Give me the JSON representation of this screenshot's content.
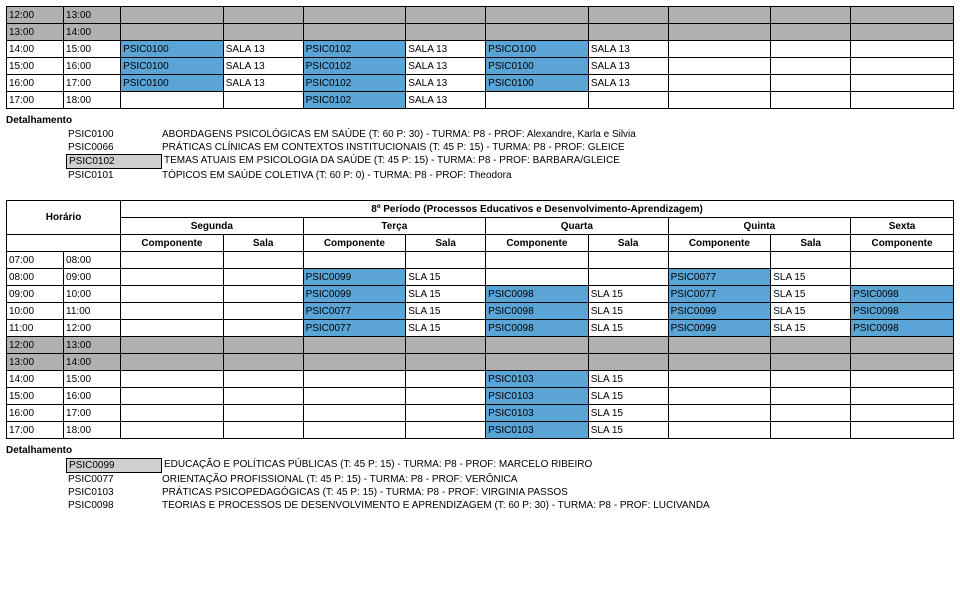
{
  "colors": {
    "blue": "#5aa4d6",
    "gray": "#b0b0b0",
    "shade": "#d0d0d0",
    "white": "#ffffff",
    "border": "#000000"
  },
  "table1": {
    "time_col": [
      [
        "12:00",
        "13:00"
      ],
      [
        "13:00",
        "14:00"
      ],
      [
        "14:00",
        "15:00"
      ],
      [
        "15:00",
        "16:00"
      ],
      [
        "16:00",
        "17:00"
      ],
      [
        "17:00",
        "18:00"
      ]
    ],
    "rows": [
      {
        "bg": "gray",
        "cells": [
          [
            "",
            ""
          ],
          [
            "",
            ""
          ],
          [
            "",
            ""
          ],
          [
            "",
            ""
          ],
          [
            "",
            ""
          ],
          [
            "",
            ""
          ],
          [
            "",
            ""
          ],
          [
            "",
            ""
          ],
          [
            "",
            ""
          ]
        ]
      },
      {
        "bg": "gray",
        "cells": [
          [
            "",
            ""
          ],
          [
            "",
            ""
          ],
          [
            "",
            ""
          ],
          [
            "",
            ""
          ],
          [
            "",
            ""
          ],
          [
            "",
            ""
          ],
          [
            "",
            ""
          ],
          [
            "",
            ""
          ],
          [
            "",
            ""
          ]
        ]
      },
      {
        "bg": "",
        "cells": [
          [
            "PSIC0100",
            "blue"
          ],
          [
            "SALA 13",
            ""
          ],
          [
            "PSIC0102",
            "blue"
          ],
          [
            "SALA 13",
            ""
          ],
          [
            "PSICO100",
            "blue"
          ],
          [
            "SALA 13",
            ""
          ],
          [
            "",
            ""
          ],
          [
            "",
            ""
          ],
          [
            "",
            ""
          ]
        ]
      },
      {
        "bg": "",
        "cells": [
          [
            "PSIC0100",
            "blue"
          ],
          [
            "SALA 13",
            ""
          ],
          [
            "PSIC0102",
            "blue"
          ],
          [
            "SALA 13",
            ""
          ],
          [
            "PSIC0100",
            "blue"
          ],
          [
            "SALA 13",
            ""
          ],
          [
            "",
            ""
          ],
          [
            "",
            ""
          ],
          [
            "",
            ""
          ]
        ]
      },
      {
        "bg": "",
        "cells": [
          [
            "PSIC0100",
            "blue"
          ],
          [
            "SALA 13",
            ""
          ],
          [
            "PSIC0102",
            "blue"
          ],
          [
            "SALA 13",
            ""
          ],
          [
            "PSIC0100",
            "blue"
          ],
          [
            "SALA 13",
            ""
          ],
          [
            "",
            ""
          ],
          [
            "",
            ""
          ],
          [
            "",
            ""
          ]
        ]
      },
      {
        "bg": "",
        "cells": [
          [
            "",
            ""
          ],
          [
            "",
            ""
          ],
          [
            "PSIC0102",
            "blue"
          ],
          [
            "SALA 13",
            ""
          ],
          [
            "",
            ""
          ],
          [
            "",
            ""
          ],
          [
            "",
            ""
          ],
          [
            "",
            ""
          ],
          [
            "",
            ""
          ]
        ]
      }
    ]
  },
  "detail1": {
    "title": "Detalhamento",
    "rows": [
      {
        "code": "PSIC0100",
        "txt": "ABORDAGENS PSICOLÓGICAS EM SAÚDE (T: 60 P: 30) - TURMA: P8 - PROF:  Alexandre, Karla e Silvia",
        "shade": false
      },
      {
        "code": "PSIC0066",
        "txt": "PRÁTICAS CLÍNICAS EM CONTEXTOS INSTITUCIONAIS (T: 45 P: 15) - TURMA: P8 - PROF: GLEICE",
        "shade": false
      },
      {
        "code": "PSIC0102",
        "txt": "TEMAS ATUAIS EM PSICOLOGIA DA SAÚDE (T: 45 P: 15) - TURMA: P8 - PROF: BARBARA/GLEICE",
        "shade": true
      },
      {
        "code": "PSIC0101",
        "txt": "TÓPICOS EM SAÚDE COLETIVA (T: 60 P: 0) - TURMA: P8 - PROF:  Theodora",
        "shade": false
      }
    ]
  },
  "table2": {
    "super_title": "8º Período (Processos Educativos e Desenvolvimento-Aprendizagem)",
    "horario": "Horário",
    "days": [
      "Segunda",
      "Terça",
      "Quarta",
      "Quinta",
      "Sexta"
    ],
    "subhead": [
      "Componente",
      "Sala",
      "Componente",
      "Sala",
      "Componente",
      "Sala",
      "Componente",
      "Sala",
      "Componente"
    ],
    "time_col": [
      [
        "07:00",
        "08:00"
      ],
      [
        "08:00",
        "09:00"
      ],
      [
        "09:00",
        "10:00"
      ],
      [
        "10:00",
        "11:00"
      ],
      [
        "11:00",
        "12:00"
      ],
      [
        "12:00",
        "13:00"
      ],
      [
        "13:00",
        "14:00"
      ],
      [
        "14:00",
        "15:00"
      ],
      [
        "15:00",
        "16:00"
      ],
      [
        "16:00",
        "17:00"
      ],
      [
        "17:00",
        "18:00"
      ]
    ],
    "rows": [
      {
        "bg": "",
        "cells": [
          [
            "",
            ""
          ],
          [
            "",
            ""
          ],
          [
            "",
            ""
          ],
          [
            "",
            ""
          ],
          [
            "",
            ""
          ],
          [
            "",
            ""
          ],
          [
            "",
            ""
          ],
          [
            "",
            ""
          ],
          [
            "",
            ""
          ]
        ]
      },
      {
        "bg": "",
        "cells": [
          [
            "",
            ""
          ],
          [
            "",
            ""
          ],
          [
            "PSIC0099",
            "blue"
          ],
          [
            "SLA 15",
            ""
          ],
          [
            "",
            ""
          ],
          [
            "",
            ""
          ],
          [
            "PSIC0077",
            "blue"
          ],
          [
            "SLA 15",
            ""
          ],
          [
            "",
            ""
          ]
        ]
      },
      {
        "bg": "",
        "cells": [
          [
            "",
            ""
          ],
          [
            "",
            ""
          ],
          [
            "PSIC0099",
            "blue"
          ],
          [
            "SLA 15",
            ""
          ],
          [
            "PSIC0098",
            "blue"
          ],
          [
            "SLA 15",
            ""
          ],
          [
            "PSIC0077",
            "blue"
          ],
          [
            "SLA 15",
            ""
          ],
          [
            "PSIC0098",
            "blue"
          ]
        ]
      },
      {
        "bg": "",
        "cells": [
          [
            "",
            ""
          ],
          [
            "",
            ""
          ],
          [
            "PSIC0077",
            "blue"
          ],
          [
            "SLA 15",
            ""
          ],
          [
            "PSIC0098",
            "blue"
          ],
          [
            "SLA 15",
            ""
          ],
          [
            "PSIC0099",
            "blue"
          ],
          [
            "SLA 15",
            ""
          ],
          [
            "PSIC0098",
            "blue"
          ]
        ]
      },
      {
        "bg": "",
        "cells": [
          [
            "",
            ""
          ],
          [
            "",
            ""
          ],
          [
            "PSIC0077",
            "blue"
          ],
          [
            "SLA 15",
            ""
          ],
          [
            "PSIC0098",
            "blue"
          ],
          [
            "SLA 15",
            ""
          ],
          [
            "PSIC0099",
            "blue"
          ],
          [
            "SLA 15",
            ""
          ],
          [
            "PSIC0098",
            "blue"
          ]
        ]
      },
      {
        "bg": "gray",
        "cells": [
          [
            "",
            ""
          ],
          [
            "",
            ""
          ],
          [
            "",
            ""
          ],
          [
            "",
            ""
          ],
          [
            "",
            ""
          ],
          [
            "",
            ""
          ],
          [
            "",
            ""
          ],
          [
            "",
            ""
          ],
          [
            "",
            ""
          ]
        ]
      },
      {
        "bg": "gray",
        "cells": [
          [
            "",
            ""
          ],
          [
            "",
            ""
          ],
          [
            "",
            ""
          ],
          [
            "",
            ""
          ],
          [
            "",
            ""
          ],
          [
            "",
            ""
          ],
          [
            "",
            ""
          ],
          [
            "",
            ""
          ],
          [
            "",
            ""
          ]
        ]
      },
      {
        "bg": "",
        "cells": [
          [
            "",
            ""
          ],
          [
            "",
            ""
          ],
          [
            "",
            ""
          ],
          [
            "",
            ""
          ],
          [
            "PSIC0103",
            "blue"
          ],
          [
            "SLA 15",
            ""
          ],
          [
            "",
            ""
          ],
          [
            "",
            ""
          ],
          [
            "",
            ""
          ]
        ]
      },
      {
        "bg": "",
        "cells": [
          [
            "",
            ""
          ],
          [
            "",
            ""
          ],
          [
            "",
            ""
          ],
          [
            "",
            ""
          ],
          [
            "PSIC0103",
            "blue"
          ],
          [
            "SLA 15",
            ""
          ],
          [
            "",
            ""
          ],
          [
            "",
            ""
          ],
          [
            "",
            ""
          ]
        ]
      },
      {
        "bg": "",
        "cells": [
          [
            "",
            ""
          ],
          [
            "",
            ""
          ],
          [
            "",
            ""
          ],
          [
            "",
            ""
          ],
          [
            "PSIC0103",
            "blue"
          ],
          [
            "SLA 15",
            ""
          ],
          [
            "",
            ""
          ],
          [
            "",
            ""
          ],
          [
            "",
            ""
          ]
        ]
      },
      {
        "bg": "",
        "cells": [
          [
            "",
            ""
          ],
          [
            "",
            ""
          ],
          [
            "",
            ""
          ],
          [
            "",
            ""
          ],
          [
            "PSIC0103",
            "blue"
          ],
          [
            "SLA 15",
            ""
          ],
          [
            "",
            ""
          ],
          [
            "",
            ""
          ],
          [
            "",
            ""
          ]
        ]
      }
    ]
  },
  "detail2": {
    "title": "Detalhamento",
    "rows": [
      {
        "code": "PSIC0099",
        "txt": "EDUCAÇÃO E POLÍTICAS PÚBLICAS (T: 45 P: 15) - TURMA: P8 - PROF: MARCELO RIBEIRO",
        "shade": true
      },
      {
        "code": "PSIC0077",
        "txt": "ORIENTAÇÃO PROFISSIONAL (T: 45 P: 15) - TURMA: P8 - PROF: VERÔNICA",
        "shade": false
      },
      {
        "code": "PSIC0103",
        "txt": "PRÁTICAS PSICOPEDAGÓGICAS (T: 45 P: 15) - TURMA: P8 - PROF: VIRGINIA PASSOS",
        "shade": false
      },
      {
        "code": "PSIC0098",
        "txt": "TEORIAS E PROCESSOS DE DESENVOLVIMENTO E APRENDIZAGEM (T: 60 P: 30) - TURMA: P8 - PROF: LUCIVANDA",
        "shade": false
      }
    ]
  }
}
